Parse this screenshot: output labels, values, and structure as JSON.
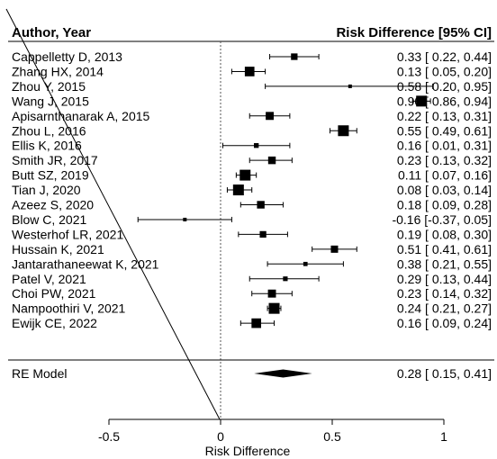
{
  "chart_data": {
    "type": "forest",
    "headers": {
      "study": "Author, Year",
      "effect": "Risk Difference [95% CI]"
    },
    "xlabel": "Risk Difference",
    "xlim": [
      -0.6,
      1.0
    ],
    "xticks": [
      -0.5,
      0,
      0.5,
      1
    ],
    "xtick_labels": [
      "-0.5",
      "0",
      "0.5",
      "1"
    ],
    "reference_line": 0,
    "studies": [
      {
        "label": "Cappelletty D, 2013",
        "est": 0.33,
        "lo": 0.22,
        "hi": 0.44,
        "text": "0.33 [ 0.22, 0.44]"
      },
      {
        "label": "Zhang HX, 2014",
        "est": 0.13,
        "lo": 0.05,
        "hi": 0.2,
        "text": "0.13 [ 0.05, 0.20]"
      },
      {
        "label": "Zhou Y, 2015",
        "est": 0.58,
        "lo": 0.2,
        "hi": 0.95,
        "text": "0.58 [ 0.20, 0.95]"
      },
      {
        "label": "Wang J, 2015",
        "est": 0.9,
        "lo": 0.86,
        "hi": 0.94,
        "text": "0.90 [ 0.86, 0.94]"
      },
      {
        "label": "Apisarnthanarak A, 2015",
        "est": 0.22,
        "lo": 0.13,
        "hi": 0.31,
        "text": "0.22 [ 0.13, 0.31]"
      },
      {
        "label": "Zhou L, 2016",
        "est": 0.55,
        "lo": 0.49,
        "hi": 0.61,
        "text": "0.55 [ 0.49, 0.61]"
      },
      {
        "label": "Ellis K, 2016",
        "est": 0.16,
        "lo": 0.01,
        "hi": 0.31,
        "text": "0.16 [ 0.01, 0.31]"
      },
      {
        "label": "Smith JR, 2017",
        "est": 0.23,
        "lo": 0.13,
        "hi": 0.32,
        "text": "0.23 [ 0.13, 0.32]"
      },
      {
        "label": "Butt SZ, 2019",
        "est": 0.11,
        "lo": 0.07,
        "hi": 0.16,
        "text": "0.11 [ 0.07, 0.16]"
      },
      {
        "label": "Tian J, 2020",
        "est": 0.08,
        "lo": 0.03,
        "hi": 0.14,
        "text": "0.08 [ 0.03, 0.14]"
      },
      {
        "label": "Azeez S, 2020",
        "est": 0.18,
        "lo": 0.09,
        "hi": 0.28,
        "text": "0.18 [ 0.09, 0.28]"
      },
      {
        "label": "Blow C, 2021",
        "est": -0.16,
        "lo": -0.37,
        "hi": 0.05,
        "text": "-0.16 [-0.37, 0.05]"
      },
      {
        "label": "Westerhof LR, 2021",
        "est": 0.19,
        "lo": 0.08,
        "hi": 0.3,
        "text": "0.19 [ 0.08, 0.30]"
      },
      {
        "label": "Hussain K, 2021",
        "est": 0.51,
        "lo": 0.41,
        "hi": 0.61,
        "text": "0.51 [ 0.41, 0.61]"
      },
      {
        "label": "Jantarathaneewat K, 2021",
        "est": 0.38,
        "lo": 0.21,
        "hi": 0.55,
        "text": "0.38 [ 0.21, 0.55]"
      },
      {
        "label": "Patel V, 2021",
        "est": 0.29,
        "lo": 0.13,
        "hi": 0.44,
        "text": "0.29 [ 0.13, 0.44]"
      },
      {
        "label": "Choi PW, 2021",
        "est": 0.23,
        "lo": 0.14,
        "hi": 0.32,
        "text": "0.23 [ 0.14, 0.32]"
      },
      {
        "label": "Nampoothiri V, 2021",
        "est": 0.24,
        "lo": 0.21,
        "hi": 0.27,
        "text": "0.24 [ 0.21, 0.27]"
      },
      {
        "label": "Ewijk CE, 2022",
        "est": 0.16,
        "lo": 0.09,
        "hi": 0.24,
        "text": "0.16 [ 0.09, 0.24]"
      }
    ],
    "summary": {
      "label": "RE Model",
      "est": 0.28,
      "lo": 0.15,
      "hi": 0.41,
      "text": "0.28 [ 0.15, 0.41]"
    }
  }
}
